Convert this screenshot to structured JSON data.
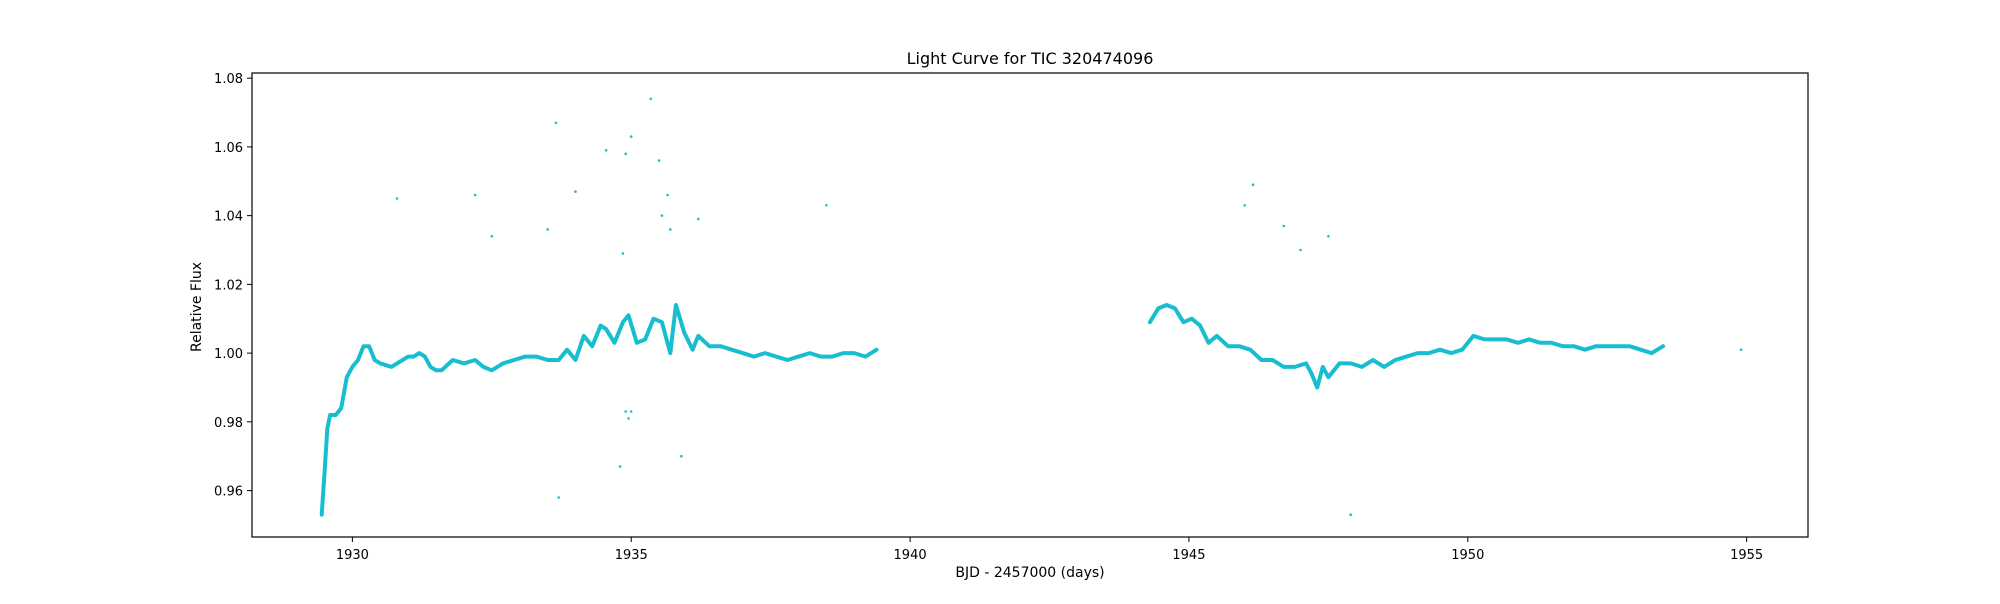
{
  "chart_data": {
    "type": "scatter",
    "title": "Light Curve for TIC 320474096",
    "xlabel": "BJD - 2457000 (days)",
    "ylabel": "Relative Flux",
    "xlim": [
      1928.2,
      1956.1
    ],
    "ylim": [
      0.9465,
      1.0815
    ],
    "xticks": [
      1930,
      1935,
      1940,
      1945,
      1950,
      1955
    ],
    "yticks": [
      0.96,
      0.98,
      1.0,
      1.02,
      1.04,
      1.06,
      1.08
    ],
    "ytick_labels": [
      "0.96",
      "0.98",
      "1.00",
      "1.02",
      "1.04",
      "1.06",
      "1.08"
    ],
    "grid": false,
    "legend": "none",
    "color": "#17becf",
    "series": [
      {
        "kind": "dense-trace",
        "x": [
          1929.45,
          1929.5,
          1929.55,
          1929.6,
          1929.65,
          1929.7,
          1929.8,
          1929.9,
          1930.0,
          1930.1,
          1930.2,
          1930.3,
          1930.4,
          1930.5,
          1930.7,
          1930.9,
          1931.0,
          1931.1,
          1931.2,
          1931.3,
          1931.4,
          1931.5,
          1931.6,
          1931.8,
          1932.0,
          1932.2,
          1932.35,
          1932.5,
          1932.7,
          1932.9,
          1933.1,
          1933.3,
          1933.5,
          1933.7,
          1933.85,
          1934.0,
          1934.15,
          1934.3,
          1934.45,
          1934.55,
          1934.7,
          1934.85,
          1934.95,
          1935.1,
          1935.25,
          1935.4,
          1935.55,
          1935.7,
          1935.8,
          1935.95,
          1936.1,
          1936.2,
          1936.4,
          1936.6,
          1936.8,
          1937.0,
          1937.2,
          1937.4,
          1937.6,
          1937.8,
          1938.0,
          1938.2,
          1938.4,
          1938.6,
          1938.8,
          1939.0,
          1939.2,
          1939.4
        ],
        "y": [
          0.953,
          0.965,
          0.978,
          0.982,
          0.982,
          0.982,
          0.984,
          0.993,
          0.996,
          0.998,
          1.002,
          1.002,
          0.998,
          0.997,
          0.996,
          0.998,
          0.999,
          0.999,
          1.0,
          0.999,
          0.996,
          0.995,
          0.995,
          0.998,
          0.997,
          0.998,
          0.996,
          0.995,
          0.997,
          0.998,
          0.999,
          0.999,
          0.998,
          0.998,
          1.001,
          0.998,
          1.005,
          1.002,
          1.008,
          1.007,
          1.003,
          1.009,
          1.011,
          1.003,
          1.004,
          1.01,
          1.009,
          1.0,
          1.014,
          1.006,
          1.001,
          1.005,
          1.002,
          1.002,
          1.001,
          1.0,
          0.999,
          1.0,
          0.999,
          0.998,
          0.999,
          1.0,
          0.999,
          0.999,
          1.0,
          1.0,
          0.999,
          1.001
        ]
      },
      {
        "kind": "dense-trace",
        "x": [
          1944.3,
          1944.45,
          1944.6,
          1944.75,
          1944.9,
          1945.05,
          1945.2,
          1945.35,
          1945.5,
          1945.7,
          1945.9,
          1946.1,
          1946.3,
          1946.5,
          1946.7,
          1946.9,
          1947.1,
          1947.2,
          1947.3,
          1947.4,
          1947.5,
          1947.7,
          1947.9,
          1948.1,
          1948.3,
          1948.5,
          1948.7,
          1948.9,
          1949.1,
          1949.3,
          1949.5,
          1949.7,
          1949.9,
          1950.1,
          1950.3,
          1950.5,
          1950.7,
          1950.9,
          1951.1,
          1951.3,
          1951.5,
          1951.7,
          1951.9,
          1952.1,
          1952.3,
          1952.5,
          1952.7,
          1952.9,
          1953.1,
          1953.3,
          1953.5
        ],
        "y": [
          1.009,
          1.013,
          1.014,
          1.013,
          1.009,
          1.01,
          1.008,
          1.003,
          1.005,
          1.002,
          1.002,
          1.001,
          0.998,
          0.998,
          0.996,
          0.996,
          0.997,
          0.994,
          0.99,
          0.996,
          0.993,
          0.997,
          0.997,
          0.996,
          0.998,
          0.996,
          0.998,
          0.999,
          1.0,
          1.0,
          1.001,
          1.0,
          1.001,
          1.005,
          1.004,
          1.004,
          1.004,
          1.003,
          1.004,
          1.003,
          1.003,
          1.002,
          1.002,
          1.001,
          1.002,
          1.002,
          1.002,
          1.002,
          1.001,
          1.0,
          1.002
        ]
      },
      {
        "kind": "outliers",
        "x": [
          1930.8,
          1932.2,
          1932.5,
          1933.5,
          1933.65,
          1933.7,
          1934.0,
          1934.55,
          1934.85,
          1934.9,
          1934.95,
          1934.9,
          1935.0,
          1935.0,
          1934.8,
          1935.35,
          1935.5,
          1935.55,
          1935.65,
          1935.7,
          1935.9,
          1936.2,
          1938.5,
          1946.0,
          1946.15,
          1946.7,
          1947.0,
          1947.5,
          1947.9,
          1954.9
        ],
        "y": [
          1.045,
          1.046,
          1.034,
          1.036,
          1.067,
          0.958,
          1.047,
          1.059,
          1.029,
          1.058,
          0.981,
          0.983,
          1.063,
          0.983,
          0.967,
          1.074,
          1.056,
          1.04,
          1.046,
          1.036,
          0.97,
          1.039,
          1.043,
          1.043,
          1.049,
          1.037,
          1.03,
          1.034,
          0.953,
          1.001
        ]
      }
    ]
  }
}
